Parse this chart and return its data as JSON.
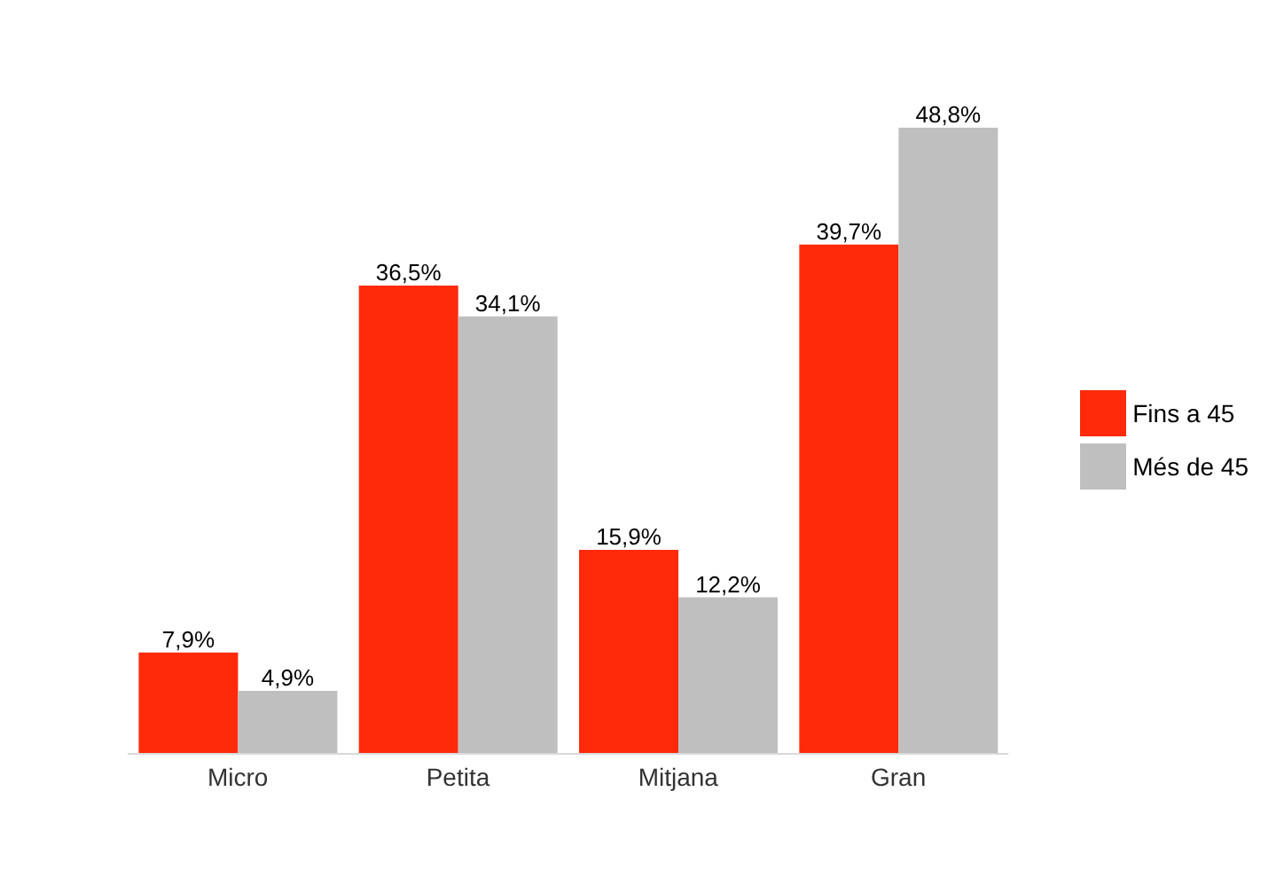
{
  "chart_data": {
    "type": "bar",
    "categories": [
      "Micro",
      "Petita",
      "Mitjana",
      "Gran"
    ],
    "series": [
      {
        "name": "Fins a 45",
        "color": "#ff2a0a",
        "values": [
          7.9,
          36.5,
          15.9,
          39.7
        ],
        "value_labels": [
          "7,9%",
          "36,5%",
          "15,9%",
          "39,7%"
        ]
      },
      {
        "name": "Més de 45",
        "color": "#bfbfbf",
        "values": [
          4.9,
          34.1,
          12.2,
          48.8
        ],
        "value_labels": [
          "4,9%",
          "34,1%",
          "12,2%",
          "48,8%"
        ]
      }
    ],
    "grid": false,
    "legend": "right"
  }
}
